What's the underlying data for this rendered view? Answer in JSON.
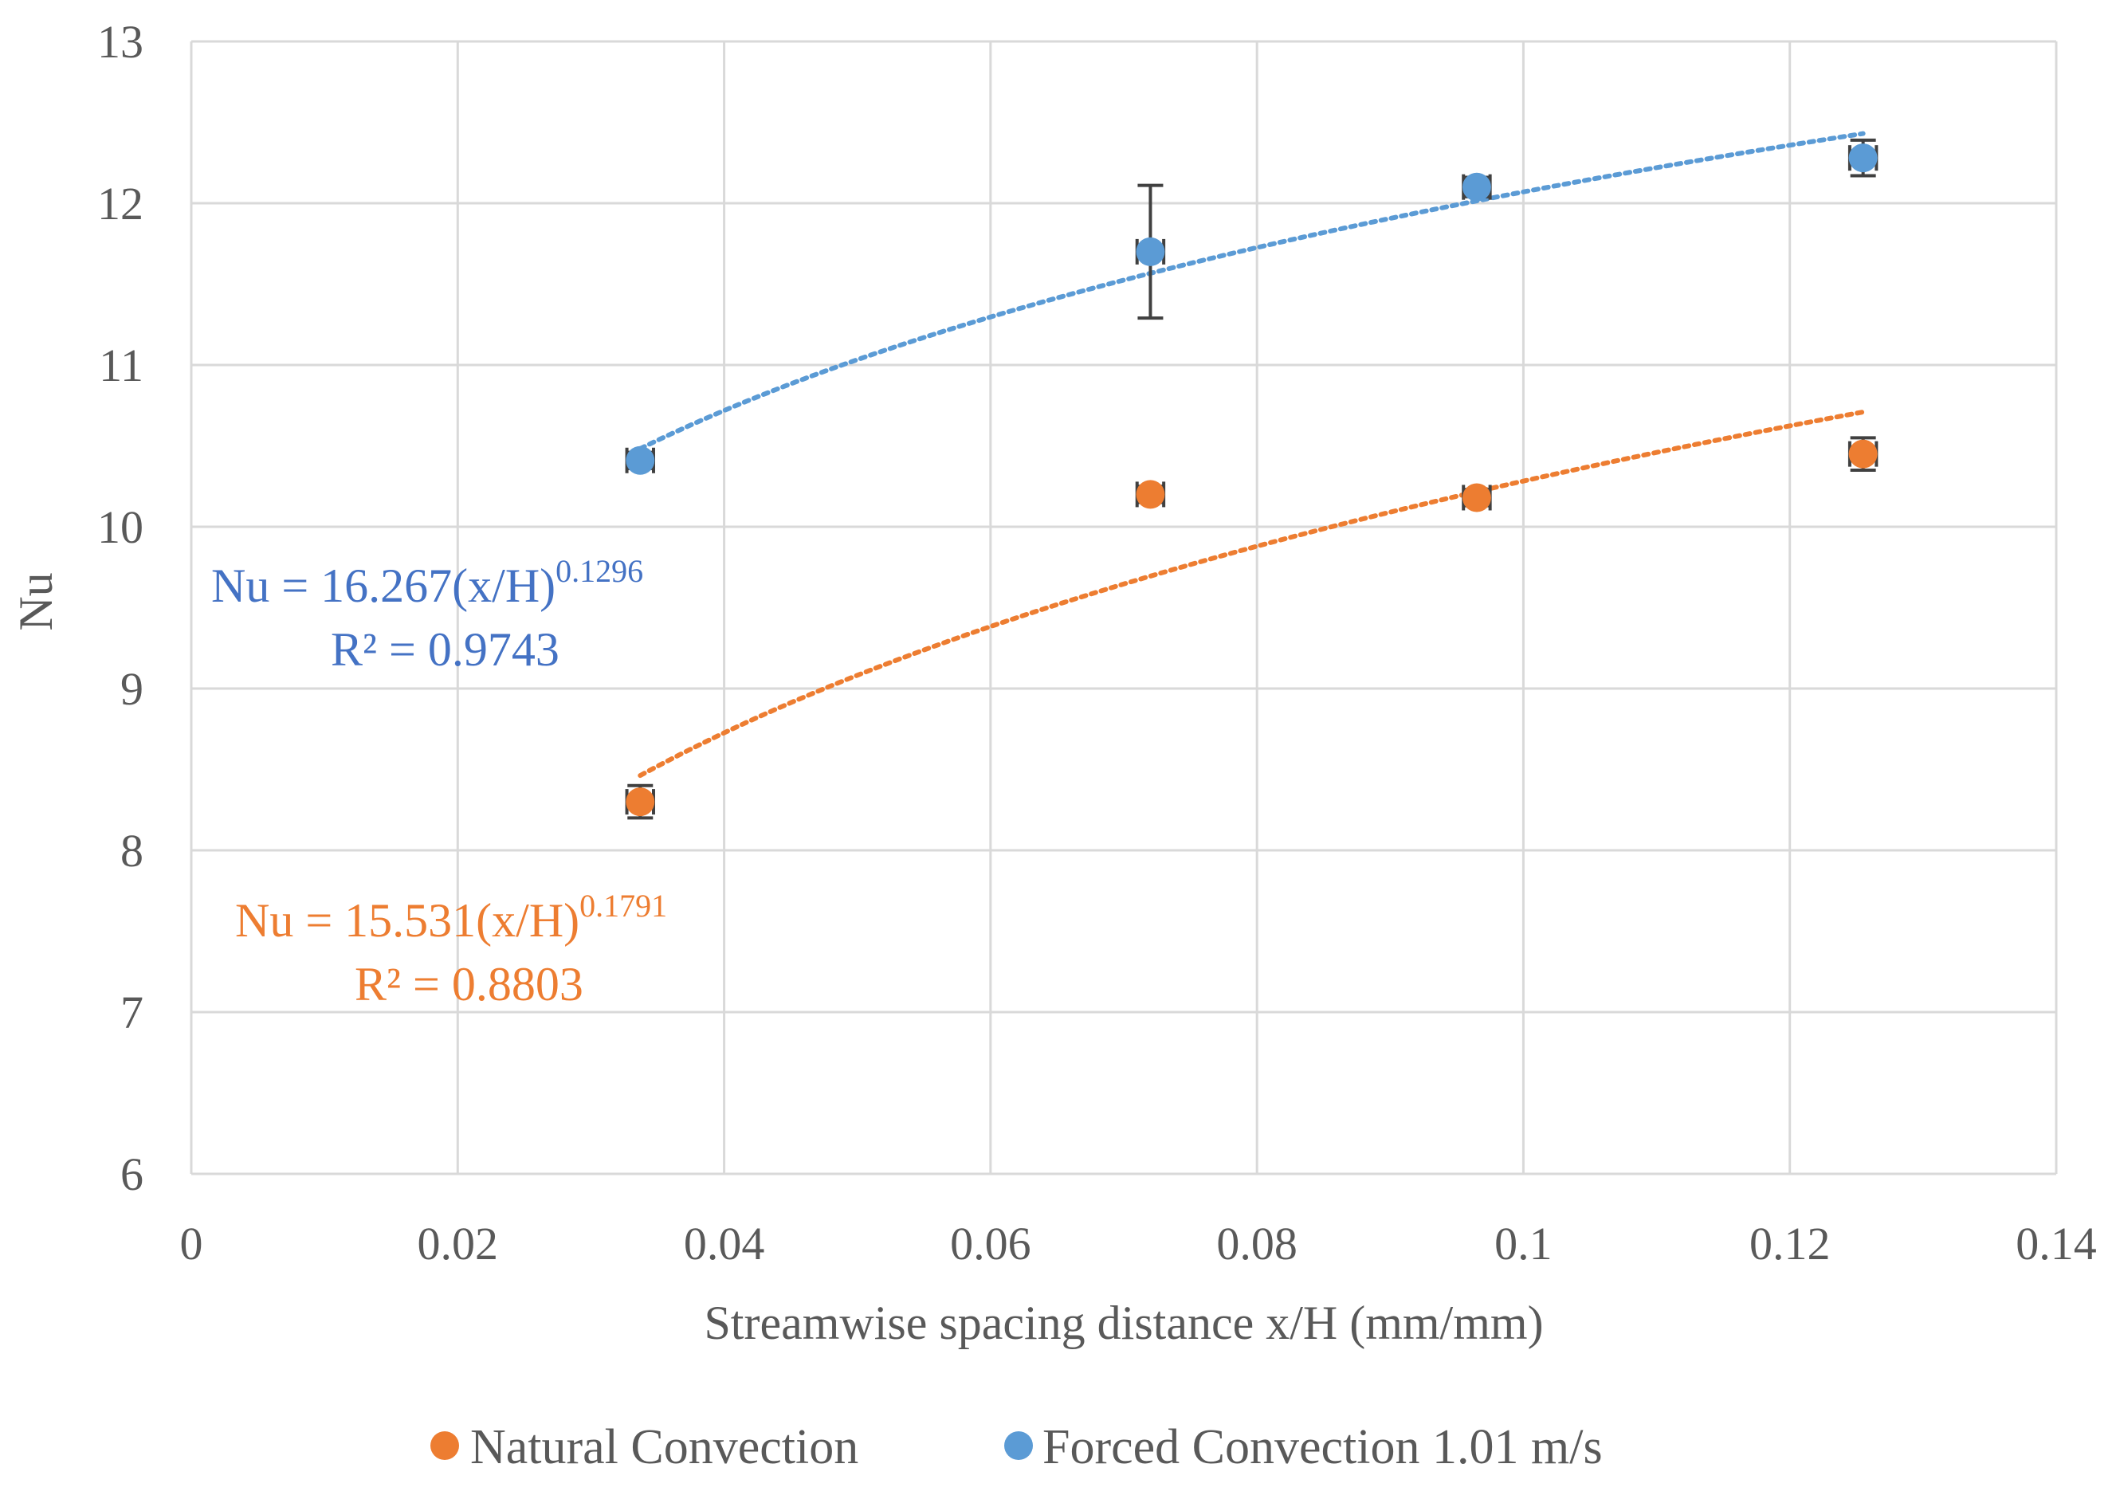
{
  "chart_data": {
    "type": "scatter",
    "xlabel": "Streamwise spacing distance x/H (mm/mm)",
    "ylabel": "Nu",
    "xlim": [
      0,
      0.14
    ],
    "ylim": [
      6,
      13
    ],
    "x_ticks": [
      "0",
      "0.02",
      "0.04",
      "0.06",
      "0.08",
      "0.1",
      "0.12",
      "0.14"
    ],
    "y_ticks": [
      "6",
      "7",
      "8",
      "9",
      "10",
      "11",
      "12",
      "13"
    ],
    "grid": true,
    "legend_position": "bottom",
    "series": [
      {
        "name": "Natural Convection",
        "color": "#ED7D31",
        "x": [
          0.0337,
          0.072,
          0.0965,
          0.1255
        ],
        "y": [
          8.3,
          10.2,
          10.18,
          10.45
        ],
        "y_error": [
          0.1,
          0.05,
          0.05,
          0.1
        ],
        "x_error": [
          0.001,
          0.001,
          0.001,
          0.001
        ],
        "trendline": {
          "type": "power",
          "coef": 15.531,
          "exponent": 0.1791,
          "equation": "Nu = 15.531(x/H)",
          "exponent_label": "0.1791",
          "r2_label": "R² = 0.8803"
        }
      },
      {
        "name": "Forced Convection 1.01 m/s",
        "color": "#5B9BD5",
        "x": [
          0.0337,
          0.072,
          0.0965,
          0.1255
        ],
        "y": [
          10.41,
          11.7,
          12.1,
          12.28
        ],
        "y_error": [
          0.05,
          0.41,
          0.06,
          0.11
        ],
        "x_error": [
          0.001,
          0.001,
          0.001,
          0.001
        ],
        "trendline": {
          "type": "power",
          "coef": 16.267,
          "exponent": 0.1296,
          "equation": "Nu = 16.267(x/H)",
          "exponent_label": "0.1296",
          "r2_label": "R² = 0.9743"
        }
      }
    ]
  },
  "colors": {
    "natural": "#ED7D31",
    "forced": "#5B9BD5",
    "grid": "#D9D9D9",
    "error_bar": "#404040"
  }
}
